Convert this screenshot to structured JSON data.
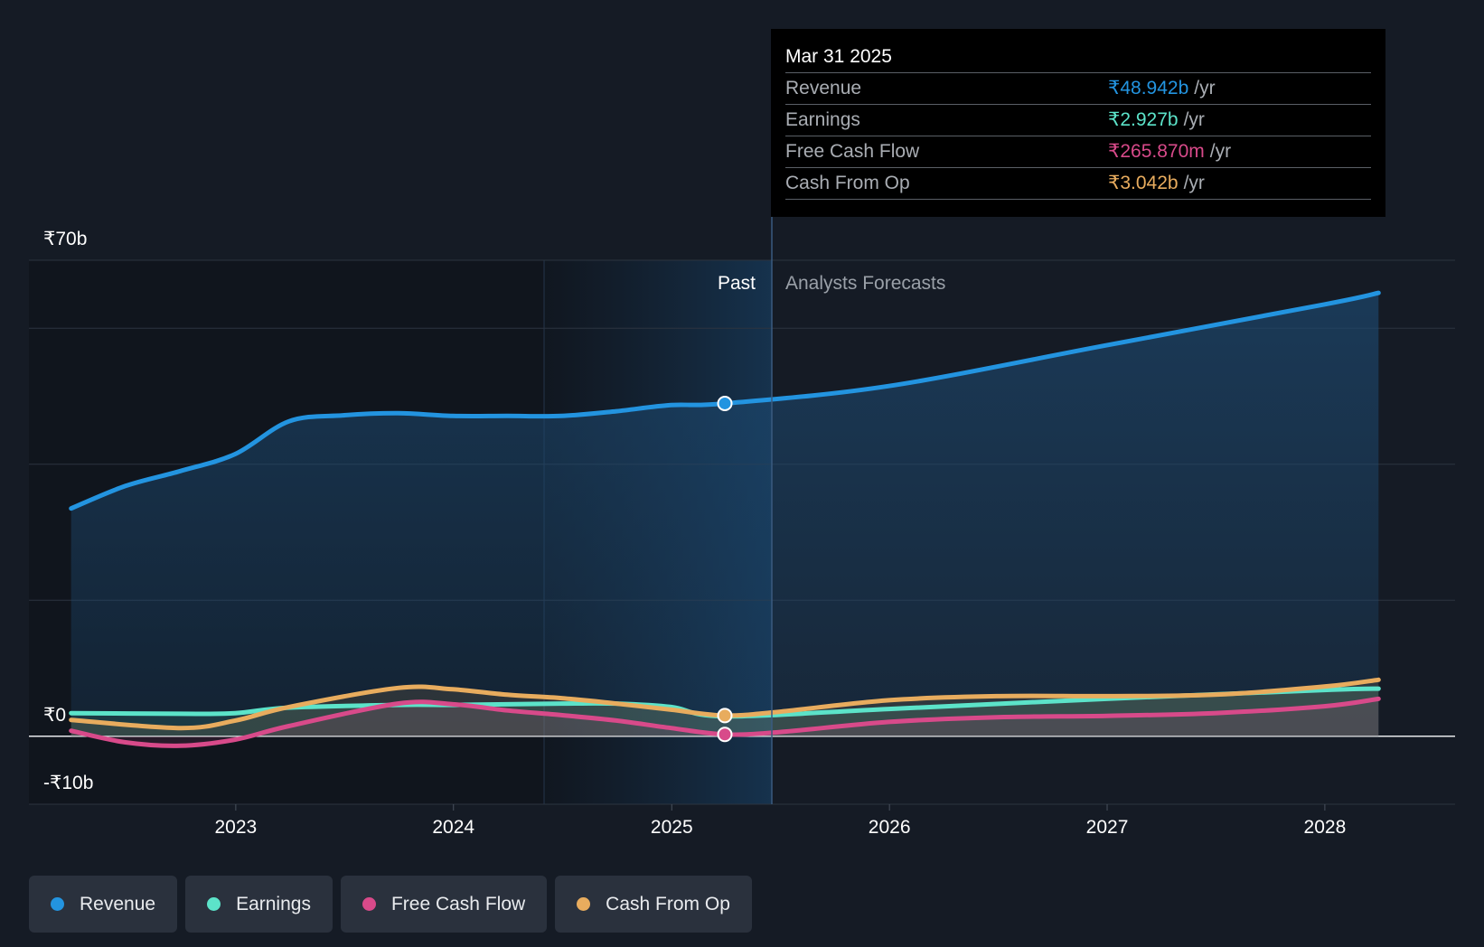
{
  "chart_data": {
    "type": "line",
    "x_axis": {
      "ticks": [
        "2023",
        "2024",
        "2025",
        "2026",
        "2027",
        "2028"
      ]
    },
    "y_axis": {
      "ticks": [
        "₹70b",
        "₹0",
        "-₹10b"
      ],
      "range_billion": [
        -10,
        70
      ]
    },
    "regions": {
      "past_label": "Past",
      "forecast_label": "Analysts Forecasts",
      "split_date": "2025-03-31"
    },
    "series": [
      {
        "name": "Revenue",
        "color": "#2394e0",
        "points": [
          [
            "2022-03-31",
            33.5
          ],
          [
            "2022-06-30",
            36.8
          ],
          [
            "2022-09-30",
            39.0
          ],
          [
            "2022-12-31",
            41.5
          ],
          [
            "2023-03-31",
            46.3
          ],
          [
            "2023-06-30",
            47.2
          ],
          [
            "2023-09-30",
            47.5
          ],
          [
            "2023-12-31",
            47.1
          ],
          [
            "2024-03-31",
            47.1
          ],
          [
            "2024-06-30",
            47.1
          ],
          [
            "2024-09-30",
            47.8
          ],
          [
            "2024-12-31",
            48.7
          ],
          [
            "2025-03-31",
            48.942
          ],
          [
            "2025-12-31",
            51.5
          ],
          [
            "2026-12-31",
            57.5
          ],
          [
            "2027-12-31",
            63.5
          ],
          [
            "2028-03-31",
            65.2
          ]
        ]
      },
      {
        "name": "Earnings",
        "color": "#5ce3c9",
        "points": [
          [
            "2022-03-31",
            3.4
          ],
          [
            "2022-09-30",
            3.3
          ],
          [
            "2022-12-31",
            3.4
          ],
          [
            "2023-03-31",
            4.2
          ],
          [
            "2023-09-30",
            4.6
          ],
          [
            "2023-12-31",
            4.6
          ],
          [
            "2024-03-31",
            4.7
          ],
          [
            "2024-06-30",
            4.8
          ],
          [
            "2024-09-30",
            4.8
          ],
          [
            "2024-12-31",
            4.3
          ],
          [
            "2025-03-31",
            2.927
          ],
          [
            "2025-12-31",
            4.0
          ],
          [
            "2026-12-31",
            5.5
          ],
          [
            "2027-12-31",
            6.8
          ],
          [
            "2028-03-31",
            7.0
          ]
        ]
      },
      {
        "name": "Free Cash Flow",
        "color": "#d84a8a",
        "points": [
          [
            "2022-03-31",
            0.8
          ],
          [
            "2022-06-30",
            -0.9
          ],
          [
            "2022-09-30",
            -1.4
          ],
          [
            "2022-12-31",
            -0.5
          ],
          [
            "2023-03-31",
            1.5
          ],
          [
            "2023-09-30",
            4.8
          ],
          [
            "2023-12-31",
            4.7
          ],
          [
            "2024-03-31",
            3.8
          ],
          [
            "2024-06-30",
            3.1
          ],
          [
            "2024-09-30",
            2.3
          ],
          [
            "2024-12-31",
            1.2
          ],
          [
            "2025-03-31",
            0.26587
          ],
          [
            "2025-06-30",
            0.6
          ],
          [
            "2025-12-31",
            2.1
          ],
          [
            "2026-06-30",
            2.8
          ],
          [
            "2026-12-31",
            3.0
          ],
          [
            "2027-06-30",
            3.4
          ],
          [
            "2027-12-31",
            4.4
          ],
          [
            "2028-03-31",
            5.5
          ]
        ]
      },
      {
        "name": "Cash From Op",
        "color": "#e8ac5e",
        "points": [
          [
            "2022-03-31",
            2.4
          ],
          [
            "2022-09-30",
            1.2
          ],
          [
            "2022-12-31",
            2.3
          ],
          [
            "2023-03-31",
            4.3
          ],
          [
            "2023-09-30",
            7.1
          ],
          [
            "2023-12-31",
            6.9
          ],
          [
            "2024-03-31",
            6.1
          ],
          [
            "2024-06-30",
            5.6
          ],
          [
            "2024-09-30",
            4.8
          ],
          [
            "2024-12-31",
            3.9
          ],
          [
            "2025-03-31",
            3.042
          ],
          [
            "2025-06-30",
            3.6
          ],
          [
            "2025-12-31",
            5.3
          ],
          [
            "2026-06-30",
            5.9
          ],
          [
            "2026-12-31",
            5.9
          ],
          [
            "2027-06-30",
            6.1
          ],
          [
            "2027-12-31",
            7.3
          ],
          [
            "2028-03-31",
            8.3
          ]
        ]
      }
    ]
  },
  "tooltip": {
    "date": "Mar 31 2025",
    "rows": [
      {
        "name": "Revenue",
        "value": "₹48.942b",
        "unit": "/yr",
        "color": "#2394e0"
      },
      {
        "name": "Earnings",
        "value": "₹2.927b",
        "unit": "/yr",
        "color": "#5ce3c9"
      },
      {
        "name": "Free Cash Flow",
        "value": "₹265.870m",
        "unit": "/yr",
        "color": "#d84a8a"
      },
      {
        "name": "Cash From Op",
        "value": "₹3.042b",
        "unit": "/yr",
        "color": "#e8ac5e"
      }
    ]
  },
  "legend": [
    {
      "label": "Revenue",
      "color": "#2394e0"
    },
    {
      "label": "Earnings",
      "color": "#5ce3c9"
    },
    {
      "label": "Free Cash Flow",
      "color": "#d84a8a"
    },
    {
      "label": "Cash From Op",
      "color": "#e8ac5e"
    }
  ]
}
